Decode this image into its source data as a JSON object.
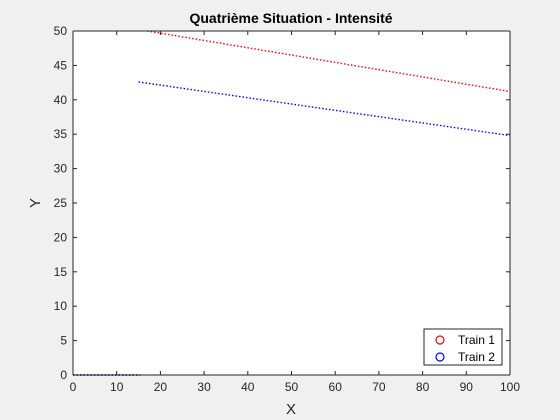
{
  "chart_data": {
    "type": "line",
    "title": "Quatrième Situation - Intensité",
    "xlabel": "X",
    "ylabel": "Y",
    "xlim": [
      0,
      100
    ],
    "ylim": [
      0,
      50
    ],
    "xticks": [
      0,
      10,
      20,
      30,
      40,
      50,
      60,
      70,
      80,
      90,
      100
    ],
    "yticks": [
      0,
      5,
      10,
      15,
      20,
      25,
      30,
      35,
      40,
      45,
      50
    ],
    "grid": false,
    "legend_position": "bottom-right",
    "series": [
      {
        "name": "Train 1",
        "color": "#ff0000",
        "marker": "o",
        "line_style": "dotted",
        "x": [
          17,
          100
        ],
        "y": [
          50,
          41.2
        ],
        "baseline_x": [
          0,
          16
        ],
        "baseline_y": [
          0,
          0
        ]
      },
      {
        "name": "Train 2",
        "color": "#0000ff",
        "marker": "o",
        "line_style": "dotted",
        "x": [
          15,
          100
        ],
        "y": [
          42.6,
          34.8
        ],
        "baseline_x": [
          0,
          15
        ],
        "baseline_y": [
          0,
          0
        ]
      }
    ]
  }
}
